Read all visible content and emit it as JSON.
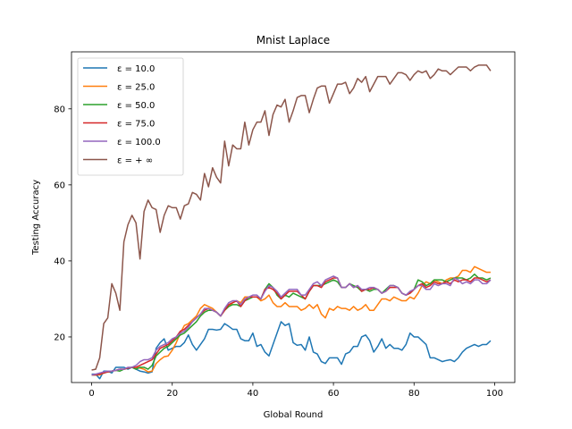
{
  "chart_data": {
    "type": "line",
    "title": "Mnist Laplace",
    "xlabel": "Global Round",
    "ylabel": "Testing Accuracy",
    "xlim": [
      -5,
      105
    ],
    "ylim": [
      8,
      95
    ],
    "xticks": [
      0,
      20,
      40,
      60,
      80,
      100
    ],
    "yticks": [
      20,
      40,
      60,
      80
    ],
    "grid": false,
    "legend_position": "top-left",
    "series": [
      {
        "name": "ε = 10.0",
        "color": "#1f77b4",
        "values": [
          10.2,
          10.2,
          9.0,
          11.0,
          11.0,
          10.5,
          12.0,
          12.0,
          12.0,
          11.5,
          12.0,
          11.5,
          11.0,
          10.8,
          10.5,
          10.8,
          17.0,
          18.5,
          19.5,
          16.5,
          17.0,
          17.5,
          17.5,
          18.5,
          20.5,
          18.0,
          16.5,
          18.0,
          19.5,
          22.0,
          22.0,
          21.8,
          22.0,
          23.5,
          22.8,
          22.0,
          22.0,
          19.5,
          19.0,
          19.0,
          21.0,
          17.5,
          18.0,
          16.0,
          15.0,
          18.0,
          21.0,
          24.0,
          23.0,
          23.5,
          18.5,
          17.8,
          18.0,
          16.5,
          20.0,
          16.0,
          15.5,
          13.5,
          13.0,
          14.5,
          14.5,
          14.5,
          12.8,
          15.5,
          16.0,
          17.5,
          17.5,
          20.0,
          20.5,
          19.0,
          16.0,
          17.5,
          19.5,
          17.0,
          18.0,
          17.0,
          17.0,
          16.5,
          18.0,
          21.0,
          20.0,
          20.0,
          19.0,
          18.0,
          14.5,
          14.5,
          14.0,
          13.5,
          13.8,
          14.0,
          13.5,
          14.5,
          16.0,
          17.0,
          17.5,
          18.0,
          17.5,
          18.0,
          18.0,
          19.0
        ]
      },
      {
        "name": "ε = 25.0",
        "color": "#ff7f0e",
        "values": [
          10.0,
          10.0,
          10.0,
          10.5,
          10.8,
          11.0,
          11.2,
          11.5,
          11.5,
          11.8,
          12.0,
          12.0,
          11.8,
          11.5,
          10.8,
          11.0,
          13.0,
          14.0,
          14.8,
          15.0,
          16.5,
          18.5,
          21.0,
          23.0,
          23.5,
          24.5,
          25.5,
          27.5,
          28.5,
          28.0,
          27.5,
          26.5,
          25.5,
          27.0,
          28.0,
          29.0,
          29.5,
          29.0,
          30.5,
          30.5,
          30.5,
          30.5,
          29.5,
          30.0,
          31.0,
          29.0,
          28.0,
          28.0,
          29.0,
          28.0,
          28.0,
          28.0,
          27.0,
          27.5,
          28.5,
          27.5,
          28.5,
          26.0,
          25.0,
          27.5,
          27.0,
          28.0,
          27.5,
          27.5,
          27.0,
          28.0,
          27.0,
          27.5,
          28.5,
          27.0,
          27.0,
          28.5,
          30.0,
          30.0,
          29.5,
          30.5,
          30.0,
          29.5,
          29.5,
          30.5,
          30.0,
          31.5,
          33.5,
          34.5,
          34.0,
          35.0,
          34.5,
          34.0,
          35.0,
          35.5,
          35.5,
          36.0,
          37.5,
          37.5,
          37.0,
          38.5,
          38.0,
          37.5,
          37.0,
          37.0
        ]
      },
      {
        "name": "ε = 50.0",
        "color": "#2ca02c",
        "values": [
          10.0,
          10.0,
          10.2,
          10.5,
          10.8,
          11.0,
          11.2,
          11.0,
          11.5,
          11.8,
          12.0,
          11.5,
          12.0,
          12.0,
          11.5,
          12.5,
          15.0,
          16.0,
          17.0,
          17.5,
          18.5,
          19.5,
          20.5,
          21.0,
          22.0,
          23.0,
          24.0,
          25.5,
          26.5,
          27.0,
          27.0,
          26.5,
          25.5,
          27.0,
          28.0,
          28.5,
          28.5,
          28.0,
          29.5,
          30.0,
          30.5,
          30.5,
          30.0,
          32.5,
          34.0,
          33.0,
          31.0,
          30.0,
          31.0,
          30.5,
          31.5,
          31.0,
          30.5,
          30.0,
          32.0,
          33.5,
          33.5,
          33.5,
          34.0,
          34.5,
          35.0,
          34.5,
          33.0,
          33.0,
          34.0,
          33.5,
          33.0,
          32.0,
          32.5,
          32.0,
          32.5,
          32.5,
          31.5,
          32.5,
          33.5,
          33.5,
          33.0,
          31.5,
          31.0,
          31.5,
          32.5,
          35.0,
          34.5,
          33.5,
          34.0,
          35.0,
          35.0,
          35.0,
          34.5,
          35.0,
          35.5,
          35.5,
          35.5,
          35.0,
          35.5,
          36.5,
          35.5,
          35.5,
          35.0,
          35.5
        ]
      },
      {
        "name": "ε = 75.0",
        "color": "#d62728",
        "values": [
          10.0,
          10.0,
          10.2,
          10.5,
          10.8,
          11.0,
          11.2,
          11.5,
          11.5,
          11.8,
          12.0,
          12.0,
          12.5,
          13.0,
          13.5,
          14.0,
          15.5,
          17.0,
          17.5,
          18.0,
          19.0,
          20.0,
          21.5,
          22.0,
          23.0,
          24.0,
          25.0,
          26.0,
          27.0,
          27.5,
          27.0,
          26.5,
          25.5,
          27.0,
          28.5,
          29.0,
          29.5,
          28.0,
          29.5,
          30.5,
          30.5,
          30.5,
          30.0,
          32.5,
          33.0,
          32.5,
          31.5,
          30.0,
          31.0,
          32.0,
          32.0,
          32.0,
          31.0,
          30.0,
          32.0,
          33.5,
          33.5,
          33.0,
          34.5,
          35.0,
          35.5,
          35.5,
          33.0,
          33.0,
          34.0,
          33.0,
          33.5,
          32.0,
          32.5,
          32.5,
          33.0,
          32.5,
          31.5,
          32.0,
          33.0,
          33.0,
          33.0,
          31.5,
          31.0,
          31.5,
          32.5,
          33.5,
          34.0,
          33.0,
          33.5,
          34.5,
          34.0,
          34.0,
          34.5,
          34.0,
          35.0,
          34.5,
          35.0,
          35.0,
          34.5,
          35.5,
          35.5,
          35.0,
          34.5,
          35.0
        ]
      },
      {
        "name": "ε = 100.0",
        "color": "#9467bd",
        "values": [
          10.0,
          10.2,
          10.5,
          10.8,
          11.0,
          11.0,
          11.2,
          11.5,
          11.5,
          12.0,
          12.0,
          12.5,
          13.5,
          14.0,
          14.0,
          14.5,
          16.5,
          17.5,
          18.0,
          18.5,
          19.5,
          20.0,
          21.0,
          21.5,
          22.5,
          24.0,
          25.0,
          26.0,
          27.5,
          27.5,
          27.0,
          26.5,
          25.5,
          27.5,
          29.0,
          29.5,
          29.5,
          28.5,
          30.0,
          30.5,
          31.0,
          31.0,
          30.0,
          32.0,
          33.5,
          33.0,
          32.0,
          30.5,
          31.5,
          32.5,
          32.5,
          32.5,
          31.0,
          31.0,
          32.5,
          34.0,
          34.5,
          33.5,
          35.0,
          35.5,
          36.0,
          35.5,
          33.0,
          33.0,
          34.0,
          33.0,
          33.5,
          32.5,
          32.5,
          33.0,
          33.0,
          32.5,
          31.5,
          32.0,
          33.5,
          33.5,
          33.0,
          31.5,
          31.0,
          32.0,
          32.5,
          33.5,
          33.5,
          32.5,
          32.5,
          34.0,
          33.5,
          34.0,
          34.0,
          33.5,
          35.5,
          35.0,
          34.0,
          34.5,
          34.0,
          35.0,
          35.0,
          34.0,
          34.0,
          35.0
        ]
      },
      {
        "name": "ε = + ∞",
        "color": "#8c564b",
        "values": [
          11.3,
          11.5,
          14.5,
          23.5,
          25.0,
          34.0,
          31.5,
          27.0,
          45.0,
          49.5,
          52.0,
          50.0,
          40.5,
          53.0,
          56.0,
          54.0,
          53.5,
          47.5,
          52.0,
          54.5,
          54.0,
          54.0,
          51.0,
          54.5,
          55.0,
          58.0,
          57.5,
          56.0,
          63.0,
          59.5,
          64.5,
          62.0,
          60.5,
          71.5,
          65.0,
          70.5,
          69.5,
          69.5,
          76.5,
          70.5,
          74.5,
          76.5,
          76.5,
          79.5,
          73.0,
          78.5,
          81.0,
          80.5,
          82.5,
          76.5,
          79.5,
          83.0,
          83.5,
          83.5,
          79.0,
          82.5,
          85.5,
          86.0,
          86.0,
          81.5,
          84.0,
          86.5,
          86.5,
          87.0,
          84.0,
          85.5,
          88.0,
          87.0,
          88.5,
          84.5,
          86.5,
          88.5,
          88.5,
          88.5,
          86.5,
          88.0,
          89.5,
          89.5,
          89.0,
          87.5,
          89.0,
          90.0,
          89.5,
          90.0,
          88.0,
          89.0,
          90.5,
          90.0,
          90.0,
          89.0,
          90.0,
          91.0,
          91.0,
          91.0,
          90.0,
          91.0,
          91.5,
          91.5,
          91.5,
          90.0
        ]
      }
    ]
  }
}
